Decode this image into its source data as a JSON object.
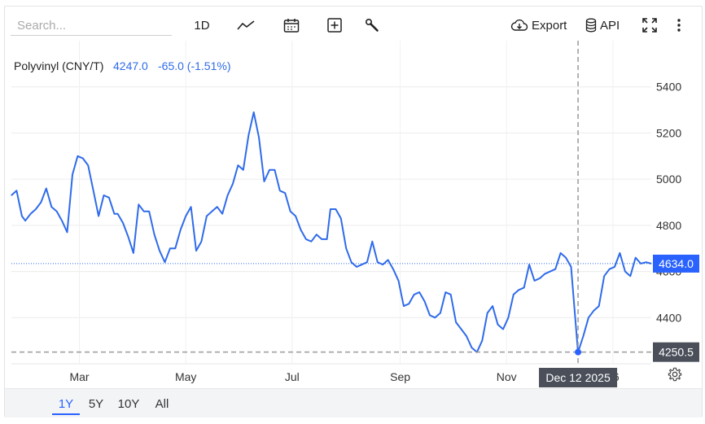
{
  "search": {
    "placeholder": "Search..."
  },
  "toolbar": {
    "interval_label": "1D",
    "export_label": "Export",
    "api_label": "API"
  },
  "legend": {
    "name": "Polyvinyl (CNY/T)",
    "price": "4247.0",
    "change": "-65.0 (-1.51%)"
  },
  "colors": {
    "line": "#2f6bea",
    "accent": "#2962ff",
    "last_label_bg": "#2962ff",
    "crosshair_label_bg": "#4a4f5a"
  },
  "ranges": {
    "items": [
      "1Y",
      "5Y",
      "10Y",
      "All"
    ],
    "active": "1Y"
  },
  "crosshair": {
    "date_label": "Dec 12 2025",
    "price_label": "4250.5",
    "date": "2025-12-12",
    "value": 4250.5
  },
  "last_value_label": "4634.0",
  "chart_data": {
    "type": "line",
    "title": "",
    "xlabel": "",
    "ylabel": "",
    "x_ticks": [
      "Mar",
      "May",
      "Jul",
      "Sep",
      "Nov",
      "26"
    ],
    "y_ticks": [
      4400,
      4600,
      4800,
      5000,
      5200,
      5400
    ],
    "ylim": [
      4200,
      5600
    ],
    "xlim": [
      "2025-01-21",
      "2026-01-23"
    ],
    "grid": true,
    "last_value": 4634.0,
    "series": [
      {
        "name": "Polyvinyl (CNY/T)",
        "x": [
          "2025-01-21",
          "2025-01-24",
          "2025-01-27",
          "2025-01-29",
          "2025-02-01",
          "2025-02-04",
          "2025-02-07",
          "2025-02-10",
          "2025-02-13",
          "2025-02-16",
          "2025-02-19",
          "2025-02-22",
          "2025-02-25",
          "2025-02-28",
          "2025-03-03",
          "2025-03-06",
          "2025-03-09",
          "2025-03-12",
          "2025-03-15",
          "2025-03-18",
          "2025-03-21",
          "2025-03-23",
          "2025-03-26",
          "2025-03-29",
          "2025-04-01",
          "2025-04-04",
          "2025-04-07",
          "2025-04-10",
          "2025-04-13",
          "2025-04-16",
          "2025-04-19",
          "2025-04-22",
          "2025-04-25",
          "2025-04-28",
          "2025-05-01",
          "2025-05-04",
          "2025-05-07",
          "2025-05-10",
          "2025-05-13",
          "2025-05-16",
          "2025-05-19",
          "2025-05-22",
          "2025-05-25",
          "2025-05-28",
          "2025-05-31",
          "2025-06-03",
          "2025-06-06",
          "2025-06-09",
          "2025-06-12",
          "2025-06-15",
          "2025-06-18",
          "2025-06-21",
          "2025-06-24",
          "2025-06-27",
          "2025-06-30",
          "2025-07-03",
          "2025-07-06",
          "2025-07-09",
          "2025-07-12",
          "2025-07-15",
          "2025-07-18",
          "2025-07-21",
          "2025-07-23",
          "2025-07-26",
          "2025-07-29",
          "2025-08-01",
          "2025-08-04",
          "2025-08-07",
          "2025-08-10",
          "2025-08-13",
          "2025-08-16",
          "2025-08-19",
          "2025-08-22",
          "2025-08-25",
          "2025-08-28",
          "2025-08-31",
          "2025-09-03",
          "2025-09-06",
          "2025-09-09",
          "2025-09-12",
          "2025-09-15",
          "2025-09-18",
          "2025-09-21",
          "2025-09-24",
          "2025-09-27",
          "2025-09-30",
          "2025-10-03",
          "2025-10-06",
          "2025-10-09",
          "2025-10-12",
          "2025-10-15",
          "2025-10-18",
          "2025-10-21",
          "2025-10-24",
          "2025-10-27",
          "2025-10-30",
          "2025-11-02",
          "2025-11-05",
          "2025-11-08",
          "2025-11-11",
          "2025-11-14",
          "2025-11-17",
          "2025-11-20",
          "2025-11-23",
          "2025-11-26",
          "2025-11-29",
          "2025-12-02",
          "2025-12-05",
          "2025-12-08",
          "2025-12-12",
          "2025-12-15",
          "2025-12-18",
          "2025-12-21",
          "2025-12-24",
          "2025-12-27",
          "2025-12-30",
          "2026-01-02",
          "2026-01-05",
          "2026-01-08",
          "2026-01-11",
          "2026-01-14",
          "2026-01-17",
          "2026-01-20",
          "2026-01-23"
        ],
        "values": [
          4930,
          4950,
          4840,
          4820,
          4850,
          4870,
          4900,
          4960,
          4880,
          4860,
          4820,
          4770,
          5020,
          5100,
          5090,
          5060,
          4950,
          4840,
          4930,
          4920,
          4850,
          4850,
          4810,
          4750,
          4680,
          4890,
          4860,
          4860,
          4760,
          4690,
          4640,
          4700,
          4700,
          4780,
          4840,
          4880,
          4690,
          4730,
          4840,
          4860,
          4880,
          4850,
          4930,
          4980,
          5060,
          5040,
          5190,
          5290,
          5180,
          4990,
          5040,
          5040,
          4950,
          4940,
          4860,
          4840,
          4780,
          4740,
          4730,
          4760,
          4740,
          4740,
          4870,
          4870,
          4830,
          4700,
          4640,
          4620,
          4630,
          4640,
          4730,
          4640,
          4630,
          4650,
          4610,
          4560,
          4450,
          4460,
          4500,
          4510,
          4470,
          4410,
          4400,
          4420,
          4510,
          4500,
          4380,
          4350,
          4320,
          4270,
          4250,
          4300,
          4420,
          4450,
          4370,
          4350,
          4400,
          4500,
          4520,
          4530,
          4630,
          4560,
          4570,
          4590,
          4600,
          4610,
          4680,
          4660,
          4620,
          4250,
          4320,
          4400,
          4430,
          4450,
          4580,
          4610,
          4620,
          4680,
          4600,
          4580,
          4660,
          4634,
          4640,
          4634
        ]
      }
    ]
  }
}
